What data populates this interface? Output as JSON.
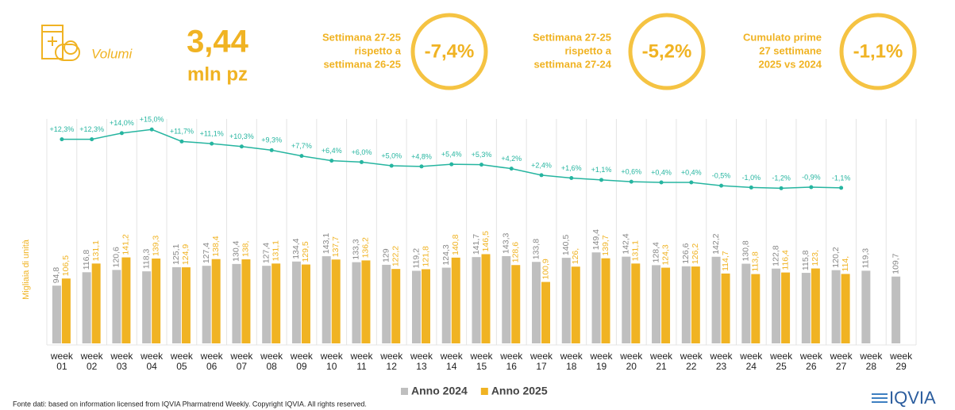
{
  "header": {
    "icon_label": "Volumi",
    "value": "3,44",
    "unit": "mln pz"
  },
  "kpis": [
    {
      "lines": [
        "Settimana 27-25",
        "rispetto a",
        "settimana 26-25"
      ],
      "value": "-7,4%"
    },
    {
      "lines": [
        "Settimana 27-25",
        "rispetto a",
        "settimana 27-24"
      ],
      "value": "-5,2%"
    },
    {
      "lines": [
        "Cumulato prime",
        "27 settimane",
        "2025 vs 2024"
      ],
      "value": "-1,1%"
    }
  ],
  "chart_data": {
    "type": "bar",
    "y_label": "Migliaia di unità",
    "categories": [
      "week 01",
      "week 02",
      "week 03",
      "week 04",
      "week 05",
      "week 06",
      "week 07",
      "week 08",
      "week 09",
      "week 10",
      "week 11",
      "week 12",
      "week 13",
      "week 14",
      "week 15",
      "week 16",
      "week 17",
      "week 18",
      "week 19",
      "week 20",
      "week 21",
      "week 22",
      "week 23",
      "week 24",
      "week 25",
      "week 26",
      "week 27",
      "week 28",
      "week 29"
    ],
    "ylim": [
      0,
      375
    ],
    "y2lim": [
      -44,
      19
    ],
    "series": [
      {
        "name": "Anno 2024",
        "color": "#bfbfbf",
        "values": [
          94.8,
          116.8,
          120.6,
          118.3,
          125.1,
          127.4,
          130.4,
          127.4,
          134.4,
          143.1,
          133.3,
          129,
          119.2,
          124.3,
          141.7,
          143.3,
          133.8,
          140.5,
          149.4,
          142.4,
          128.4,
          126.6,
          142.2,
          130.8,
          122.8,
          115.8,
          120.2,
          119.3,
          109.7
        ],
        "value_labels": [
          "94,8",
          "116,8",
          "120,6",
          "118,3",
          "125,1",
          "127,4",
          "130,4",
          "127,4",
          "134,4",
          "143,1",
          "133,3",
          "129",
          "119,2",
          "124,3",
          "141,7",
          "143,3",
          "133,8",
          "140,5",
          "149,4",
          "142,4",
          "128,4",
          "126,6",
          "142,2",
          "130,8",
          "122,8",
          "115,8",
          "120,2",
          "119,3",
          "109,7"
        ]
      },
      {
        "name": "Anno 2025",
        "color": "#f0b323",
        "values": [
          106.5,
          131.1,
          141.2,
          139.3,
          124.9,
          138.4,
          138,
          131.1,
          129.5,
          137.7,
          136.2,
          122.2,
          121.8,
          140.8,
          146.5,
          128.6,
          100.9,
          126,
          139.7,
          131.1,
          124.3,
          126.2,
          114.7,
          113.8,
          116.4,
          123,
          114,
          null,
          null
        ],
        "value_labels": [
          "106,5",
          "131,1",
          "141,2",
          "139,3",
          "124,9",
          "138,4",
          "138,",
          "131,1",
          "129,5",
          "137,7",
          "136,2",
          "122,2",
          "121,8",
          "140,8",
          "146,5",
          "128,6",
          "100,9",
          "126,",
          "139,7",
          "131,1",
          "124,3",
          "126,2",
          "114,7",
          "113,8",
          "116,4",
          "123,",
          "114,",
          null,
          null
        ]
      },
      {
        "type": "line",
        "axis": "y2",
        "color": "#26b5a0",
        "values": [
          12.3,
          12.3,
          14.0,
          15.0,
          11.7,
          11.1,
          10.3,
          9.3,
          7.7,
          6.4,
          6.0,
          5.0,
          4.8,
          5.4,
          5.3,
          4.2,
          2.4,
          1.6,
          1.1,
          0.6,
          0.4,
          0.4,
          -0.5,
          -1.0,
          -1.2,
          -0.9,
          -1.1,
          null,
          null
        ],
        "value_labels": [
          "+12,3%",
          "+12,3%",
          "+14,0%",
          "+15,0%",
          "+11,7%",
          "+11,1%",
          "+10,3%",
          "+9,3%",
          "+7,7%",
          "+6,4%",
          "+6,0%",
          "+5,0%",
          "+4,8%",
          "+5,4%",
          "+5,3%",
          "+4,2%",
          "+2,4%",
          "+1,6%",
          "+1,1%",
          "+0,6%",
          "+0,4%",
          "+0,4%",
          "-0,5%",
          "-1,0%",
          "-1,2%",
          "-0,9%",
          "-1,1%",
          null,
          null
        ]
      }
    ]
  },
  "footer": {
    "source": "Fonte dati: based on information licensed from IQVIA Pharmatrend Weekly. Copyright IQVIA. All rights reserved.",
    "logo": "IQVIA"
  }
}
